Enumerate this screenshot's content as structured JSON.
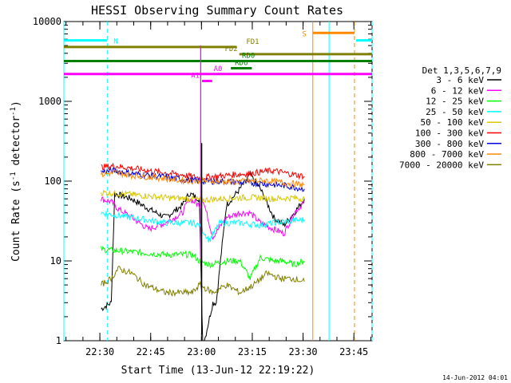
{
  "chart_data": {
    "type": "line",
    "title": "HESSI Observing Summary Count Rates",
    "xlabel": "Start Time (13-Jun-12 22:19:22)",
    "ylabel_main": "Count Rate (s",
    "ylabel_sup1": "-1",
    "ylabel_mid": " detector",
    "ylabel_sup2": "-1",
    "ylabel_end": ")",
    "y_scale": "log",
    "ylim": [
      1,
      10000
    ],
    "xlim_minutes": [
      0,
      91
    ],
    "x_ticks": [
      {
        "label": "22:30",
        "m": 10.63
      },
      {
        "label": "22:45",
        "m": 25.63
      },
      {
        "label": "23:00",
        "m": 40.63
      },
      {
        "label": "23:15",
        "m": 55.63
      },
      {
        "label": "23:30",
        "m": 70.63
      },
      {
        "label": "23:45",
        "m": 85.63
      }
    ],
    "y_ticks": [
      {
        "label": "1",
        "v": 1
      },
      {
        "label": "10",
        "v": 10
      },
      {
        "label": "100",
        "v": 100
      },
      {
        "label": "1000",
        "v": 1000
      },
      {
        "label": "10000",
        "v": 10000
      }
    ],
    "legend_title": "Det 1,3,5,6,7,9",
    "legend_position": "right",
    "series": [
      {
        "name": "3 - 6 keV",
        "color": "#000000",
        "points": [
          [
            11,
            2.5
          ],
          [
            14,
            3
          ],
          [
            15,
            70
          ],
          [
            20,
            60
          ],
          [
            25,
            45
          ],
          [
            30,
            35
          ],
          [
            35,
            50
          ],
          [
            37,
            70
          ],
          [
            40,
            60
          ],
          [
            41,
            0.8
          ],
          [
            44,
            3
          ],
          [
            45,
            3
          ],
          [
            46,
            8
          ],
          [
            48,
            50
          ],
          [
            52,
            80
          ],
          [
            55,
            120
          ],
          [
            58,
            80
          ],
          [
            62,
            35
          ],
          [
            65,
            28
          ],
          [
            68,
            40
          ],
          [
            71,
            60
          ]
        ]
      },
      {
        "name": "6 - 12 keV",
        "color": "#ff00ff",
        "points": [
          [
            11,
            60
          ],
          [
            14,
            55
          ],
          [
            16,
            45
          ],
          [
            20,
            35
          ],
          [
            25,
            25
          ],
          [
            30,
            30
          ],
          [
            35,
            40
          ],
          [
            37,
            60
          ],
          [
            40,
            50
          ],
          [
            41,
            60
          ],
          [
            44,
            20
          ],
          [
            48,
            35
          ],
          [
            52,
            40
          ],
          [
            55,
            40
          ],
          [
            58,
            30
          ],
          [
            62,
            25
          ],
          [
            65,
            22
          ],
          [
            68,
            40
          ],
          [
            71,
            55
          ]
        ]
      },
      {
        "name": "12 - 25 keV",
        "color": "#00ff00",
        "points": [
          [
            11,
            14
          ],
          [
            20,
            13
          ],
          [
            30,
            12
          ],
          [
            38,
            12
          ],
          [
            40,
            10
          ],
          [
            43,
            9
          ],
          [
            48,
            10
          ],
          [
            52,
            10
          ],
          [
            55,
            6
          ],
          [
            58,
            11
          ],
          [
            62,
            10
          ],
          [
            65,
            10
          ],
          [
            68,
            9
          ],
          [
            71,
            10
          ]
        ]
      },
      {
        "name": "25 - 50 keV",
        "color": "#00ffff",
        "points": [
          [
            11,
            40
          ],
          [
            20,
            35
          ],
          [
            30,
            30
          ],
          [
            38,
            30
          ],
          [
            40,
            28
          ],
          [
            43,
            18
          ],
          [
            46,
            30
          ],
          [
            52,
            30
          ],
          [
            58,
            28
          ],
          [
            62,
            30
          ],
          [
            68,
            32
          ],
          [
            71,
            33
          ]
        ]
      },
      {
        "name": "50 - 100 keV",
        "color": "#d8c800",
        "points": [
          [
            11,
            72
          ],
          [
            20,
            68
          ],
          [
            30,
            62
          ],
          [
            38,
            60
          ],
          [
            40,
            58
          ],
          [
            46,
            60
          ],
          [
            52,
            62
          ],
          [
            58,
            62
          ],
          [
            62,
            60
          ],
          [
            68,
            62
          ],
          [
            71,
            60
          ]
        ]
      },
      {
        "name": "100 - 300 keV",
        "color": "#ff0000",
        "points": [
          [
            11,
            150
          ],
          [
            15,
            155
          ],
          [
            20,
            145
          ],
          [
            28,
            130
          ],
          [
            35,
            120
          ],
          [
            40,
            110
          ],
          [
            45,
            115
          ],
          [
            50,
            120
          ],
          [
            55,
            125
          ],
          [
            58,
            130
          ],
          [
            62,
            135
          ],
          [
            66,
            125
          ],
          [
            71,
            115
          ]
        ]
      },
      {
        "name": "300 - 800 keV",
        "color": "#0000dd",
        "points": [
          [
            11,
            130
          ],
          [
            15,
            135
          ],
          [
            20,
            125
          ],
          [
            28,
            115
          ],
          [
            35,
            105
          ],
          [
            40,
            100
          ],
          [
            45,
            100
          ],
          [
            50,
            98
          ],
          [
            55,
            95
          ],
          [
            60,
            92
          ],
          [
            65,
            88
          ],
          [
            71,
            80
          ]
        ]
      },
      {
        "name": "800 - 7000 keV",
        "color": "#ff8800",
        "points": [
          [
            11,
            120
          ],
          [
            15,
            128
          ],
          [
            20,
            118
          ],
          [
            28,
            110
          ],
          [
            35,
            102
          ],
          [
            40,
            100
          ],
          [
            45,
            100
          ],
          [
            50,
            98
          ],
          [
            55,
            100
          ],
          [
            60,
            102
          ],
          [
            65,
            95
          ],
          [
            71,
            90
          ]
        ]
      },
      {
        "name": "7000 - 20000 keV",
        "color": "#808000",
        "points": [
          [
            11,
            5
          ],
          [
            14,
            6
          ],
          [
            16,
            8
          ],
          [
            20,
            7
          ],
          [
            24,
            5
          ],
          [
            30,
            4
          ],
          [
            38,
            4
          ],
          [
            40,
            5
          ],
          [
            44,
            4
          ],
          [
            48,
            5
          ],
          [
            52,
            4
          ],
          [
            56,
            5
          ],
          [
            60,
            7
          ],
          [
            64,
            6
          ],
          [
            68,
            6
          ],
          [
            71,
            5.5
          ]
        ]
      }
    ],
    "state_bars": [
      {
        "label": "N",
        "color": "#00ffff",
        "segments": [
          [
            0,
            12.8
          ],
          [
            86.3,
            91
          ]
        ],
        "v": 5800
      },
      {
        "label": "S",
        "color": "#ff8800",
        "segments": [
          [
            73.5,
            85.8
          ]
        ],
        "v": 7200
      },
      {
        "label": "FD1",
        "color": "#808000",
        "segments": [
          [
            0,
            51
          ]
        ],
        "v": 4800
      },
      {
        "label": "FD2",
        "color": "#808000",
        "segments": [
          [
            51.8,
            91
          ]
        ],
        "v": 3900
      },
      {
        "label": "RD0",
        "color": "#008000",
        "segments": [
          [
            0,
            91
          ]
        ],
        "v": 3200
      },
      {
        "label": "RD6",
        "color": "#008000",
        "segments": [
          [
            49.3,
            55.5
          ]
        ],
        "v": 2600
      },
      {
        "label": "A0",
        "color": "#ff00ff",
        "segments": [
          [
            0,
            91
          ]
        ],
        "v": 2200
      },
      {
        "label": "A1",
        "color": "#ff00ff",
        "segments": [
          [
            40.8,
            43.8
          ]
        ],
        "v": 1800
      }
    ],
    "vertical_markers": [
      {
        "m": 0,
        "color": "#00ffff",
        "style": "solid"
      },
      {
        "m": 12.8,
        "color": "#00ffff",
        "style": "dashed"
      },
      {
        "m": 73.5,
        "color": "#ff8800",
        "style": "solid"
      },
      {
        "m": 78.3,
        "color": "#00ffff",
        "style": "solid"
      },
      {
        "m": 85.8,
        "color": "#ff8800",
        "style": "dashed"
      },
      {
        "m": 91.0,
        "color": "#00ffff",
        "style": "dashed"
      }
    ],
    "spike": {
      "m": 40.7,
      "v_top": 300,
      "color": "#000000"
    },
    "flare_spike": {
      "m": 40.4,
      "v_top": 5000,
      "color": "#ff00ff"
    }
  },
  "footer_stamp": "14-Jun-2012 04:01"
}
